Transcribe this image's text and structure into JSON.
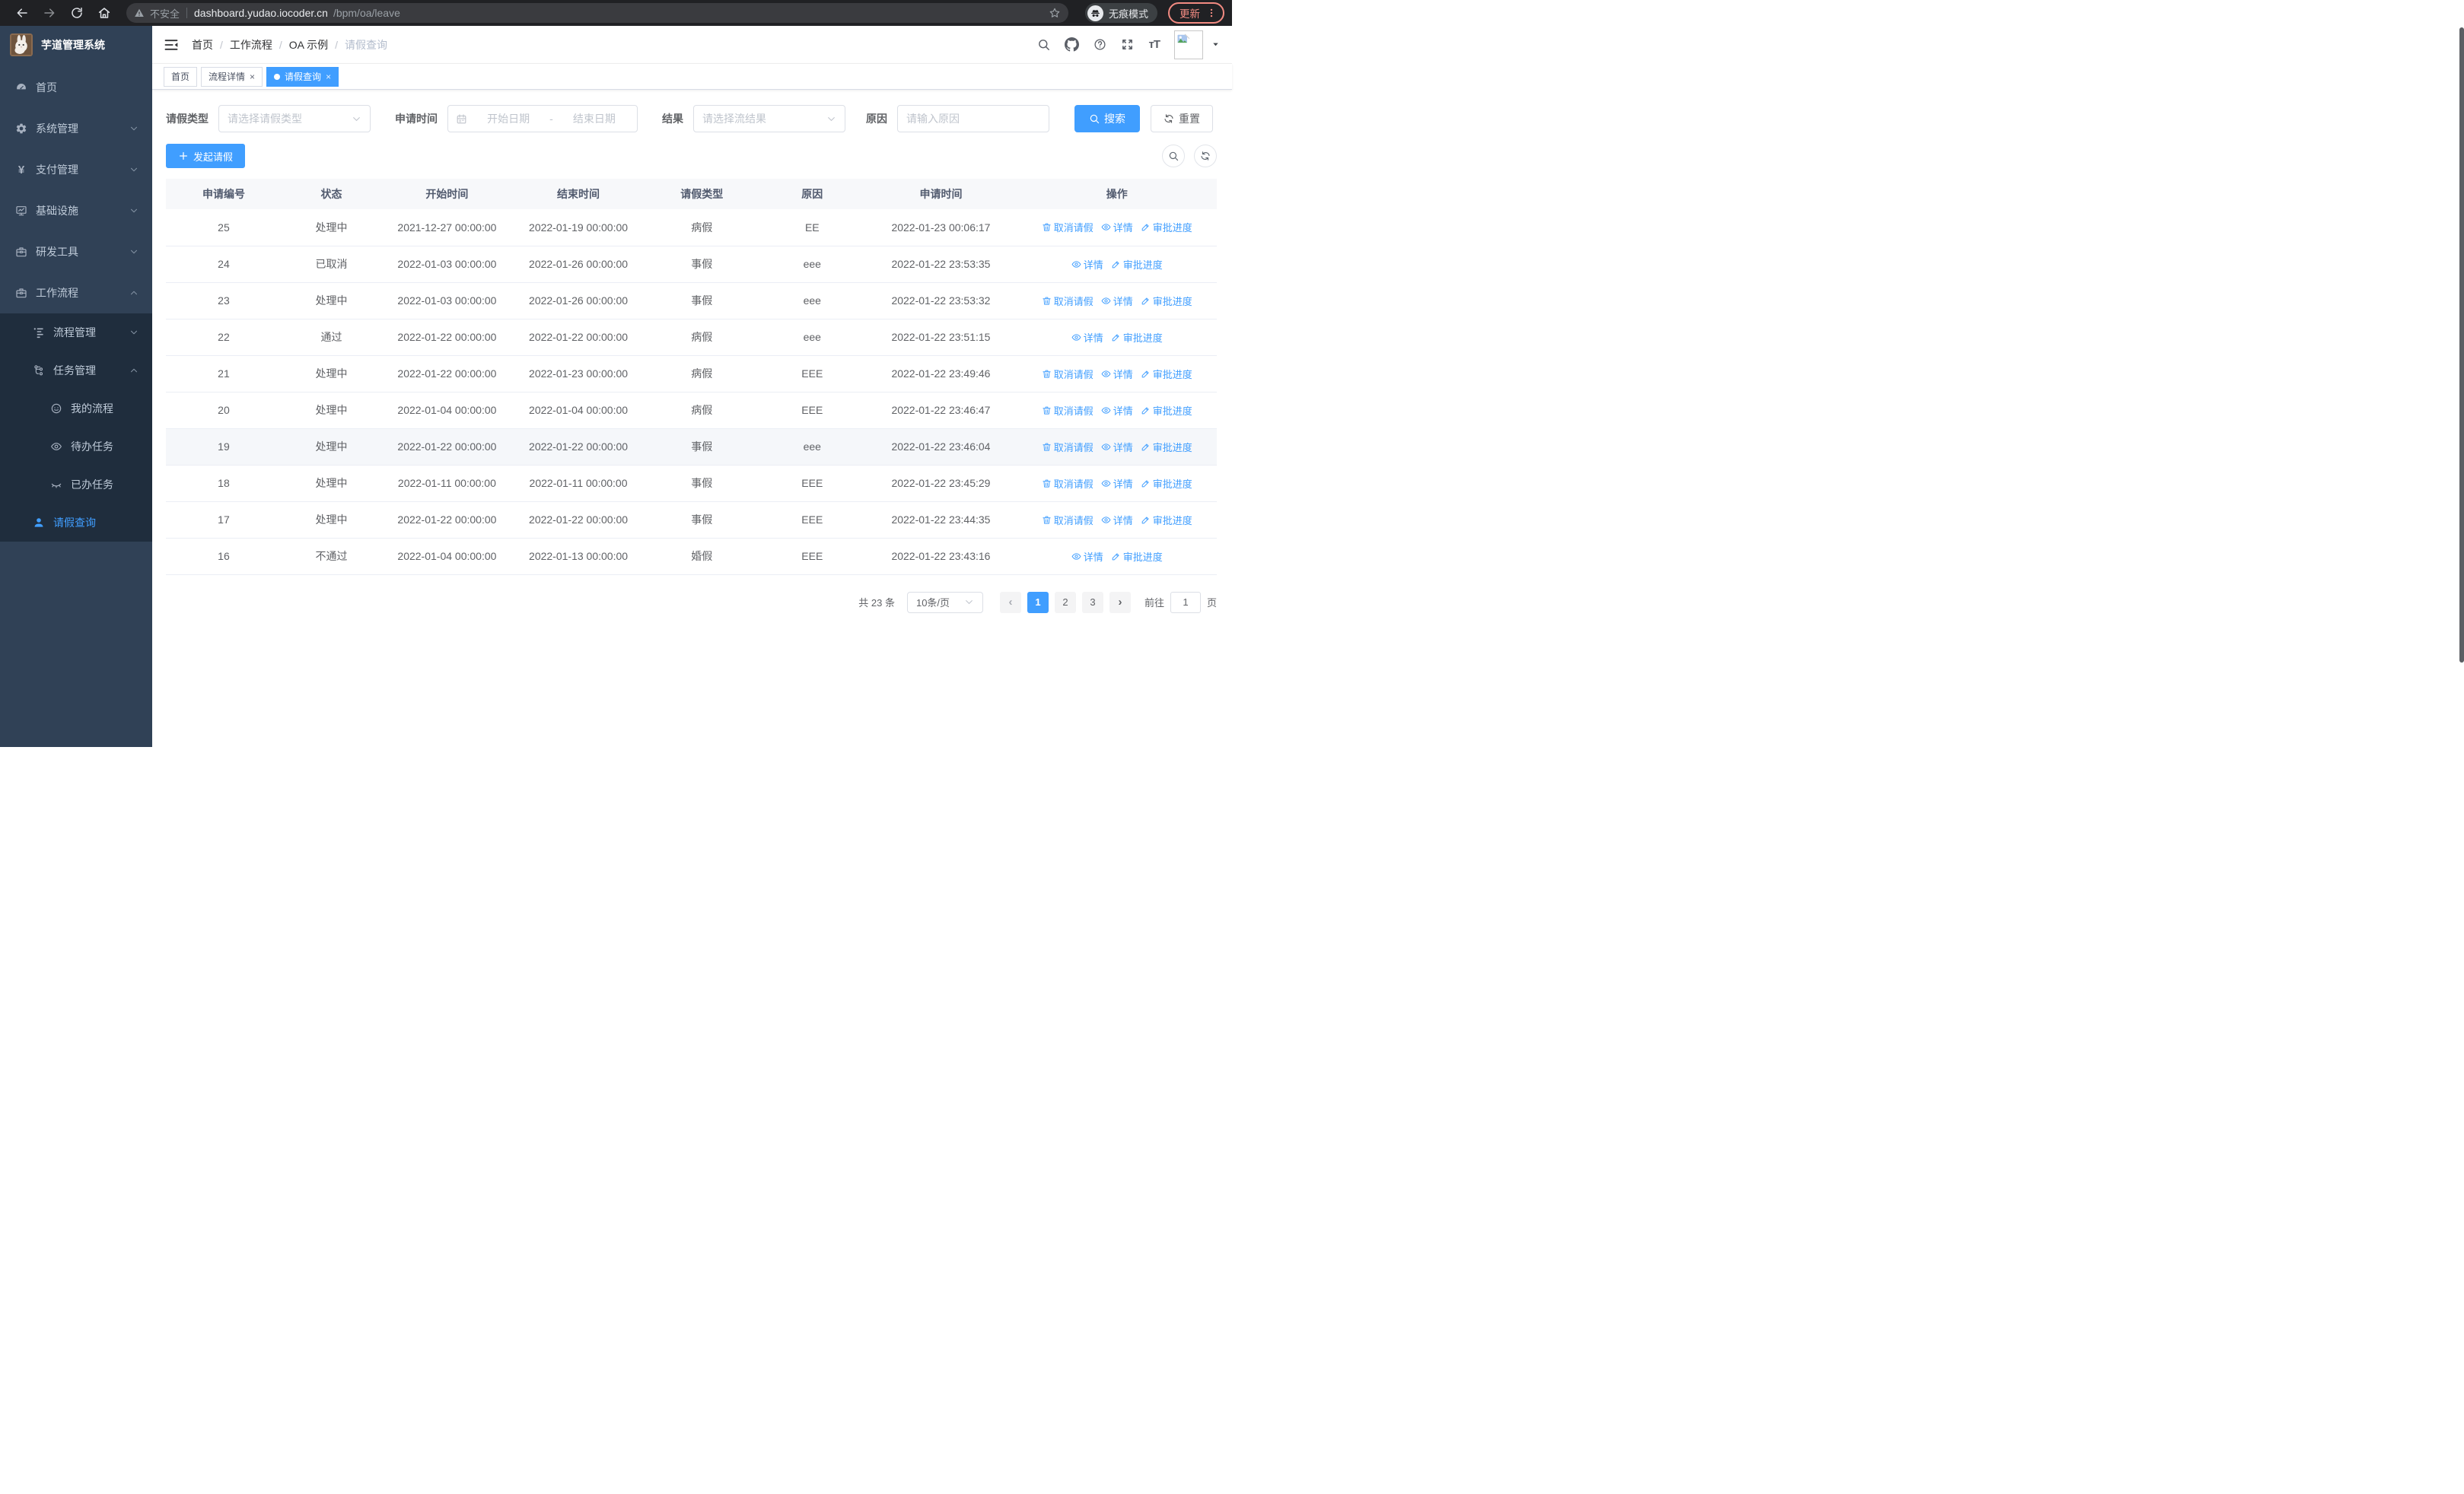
{
  "browser": {
    "security_label": "不安全",
    "url_host": "dashboard.yudao.iocoder.cn",
    "url_path": "/bpm/oa/leave",
    "incognito_label": "无痕模式",
    "update_label": "更新"
  },
  "colors": {
    "accent": "#409eff",
    "sidebar_bg": "#304156",
    "submenu_bg": "#1f2d3d",
    "update_red": "#f28b82"
  },
  "sidebar": {
    "title": "芋道管理系统",
    "menu": [
      {
        "key": "home",
        "label": "首页",
        "icon": "dashboard-icon",
        "level": 1,
        "sub": false,
        "expand": null,
        "active": false
      },
      {
        "key": "system",
        "label": "系统管理",
        "icon": "gear-icon",
        "level": 1,
        "sub": false,
        "expand": "down",
        "active": false
      },
      {
        "key": "payment",
        "label": "支付管理",
        "icon": "yen-icon",
        "level": 1,
        "sub": false,
        "expand": "down",
        "active": false
      },
      {
        "key": "infra",
        "label": "基础设施",
        "icon": "monitor-icon",
        "level": 1,
        "sub": false,
        "expand": "down",
        "active": false
      },
      {
        "key": "dev-tools",
        "label": "研发工具",
        "icon": "briefcase-icon",
        "level": 1,
        "sub": false,
        "expand": "down",
        "active": false
      },
      {
        "key": "workflow",
        "label": "工作流程",
        "icon": "briefcase-icon",
        "level": 1,
        "sub": false,
        "expand": "up",
        "active": false
      },
      {
        "key": "process-mgmt",
        "label": "流程管理",
        "icon": "list-icon",
        "level": 2,
        "sub": true,
        "expand": "down",
        "active": false
      },
      {
        "key": "task-mgmt",
        "label": "任务管理",
        "icon": "tree-icon",
        "level": 2,
        "sub": true,
        "expand": "up",
        "active": false
      },
      {
        "key": "my-process",
        "label": "我的流程",
        "icon": "face-icon",
        "level": 3,
        "sub": true,
        "expand": null,
        "active": false
      },
      {
        "key": "todo-tasks",
        "label": "待办任务",
        "icon": "eye-icon",
        "level": 3,
        "sub": true,
        "expand": null,
        "active": false
      },
      {
        "key": "done-tasks",
        "label": "已办任务",
        "icon": "eye-closed-icon",
        "level": 3,
        "sub": true,
        "expand": null,
        "active": false
      },
      {
        "key": "leave-query",
        "label": "请假查询",
        "icon": "user-icon",
        "level": 2,
        "sub": true,
        "expand": null,
        "active": true
      }
    ]
  },
  "header": {
    "breadcrumb": [
      "首页",
      "工作流程",
      "OA 示例",
      "请假查询"
    ]
  },
  "tags": [
    {
      "label": "首页",
      "active": false,
      "closable": false
    },
    {
      "label": "流程详情",
      "active": false,
      "closable": true
    },
    {
      "label": "请假查询",
      "active": true,
      "closable": true
    }
  ],
  "filters": {
    "leave_type_label": "请假类型",
    "leave_type_placeholder": "请选择请假类型",
    "apply_time_label": "申请时间",
    "date_start_placeholder": "开始日期",
    "date_separator": "-",
    "date_end_placeholder": "结束日期",
    "result_label": "结果",
    "result_placeholder": "请选择流结果",
    "reason_label": "原因",
    "reason_placeholder": "请输入原因",
    "search_label": "搜索",
    "reset_label": "重置"
  },
  "toolbar": {
    "create_label": "发起请假"
  },
  "table": {
    "columns": [
      "申请编号",
      "状态",
      "开始时间",
      "结束时间",
      "请假类型",
      "原因",
      "申请时间",
      "操作"
    ],
    "action_labels": {
      "cancel": "取消请假",
      "detail": "详情",
      "progress": "审批进度"
    },
    "rows": [
      {
        "id": "25",
        "status": "处理中",
        "start": "2021-12-27 00:00:00",
        "end": "2022-01-19 00:00:00",
        "type": "病假",
        "reason": "EE",
        "apply": "2022-01-23 00:06:17",
        "actions": [
          "cancel",
          "detail",
          "progress"
        ],
        "highlight": false
      },
      {
        "id": "24",
        "status": "已取消",
        "start": "2022-01-03 00:00:00",
        "end": "2022-01-26 00:00:00",
        "type": "事假",
        "reason": "eee",
        "apply": "2022-01-22 23:53:35",
        "actions": [
          "detail",
          "progress"
        ],
        "highlight": false
      },
      {
        "id": "23",
        "status": "处理中",
        "start": "2022-01-03 00:00:00",
        "end": "2022-01-26 00:00:00",
        "type": "事假",
        "reason": "eee",
        "apply": "2022-01-22 23:53:32",
        "actions": [
          "cancel",
          "detail",
          "progress"
        ],
        "highlight": false
      },
      {
        "id": "22",
        "status": "通过",
        "start": "2022-01-22 00:00:00",
        "end": "2022-01-22 00:00:00",
        "type": "病假",
        "reason": "eee",
        "apply": "2022-01-22 23:51:15",
        "actions": [
          "detail",
          "progress"
        ],
        "highlight": false
      },
      {
        "id": "21",
        "status": "处理中",
        "start": "2022-01-22 00:00:00",
        "end": "2022-01-23 00:00:00",
        "type": "病假",
        "reason": "EEE",
        "apply": "2022-01-22 23:49:46",
        "actions": [
          "cancel",
          "detail",
          "progress"
        ],
        "highlight": false
      },
      {
        "id": "20",
        "status": "处理中",
        "start": "2022-01-04 00:00:00",
        "end": "2022-01-04 00:00:00",
        "type": "病假",
        "reason": "EEE",
        "apply": "2022-01-22 23:46:47",
        "actions": [
          "cancel",
          "detail",
          "progress"
        ],
        "highlight": false
      },
      {
        "id": "19",
        "status": "处理中",
        "start": "2022-01-22 00:00:00",
        "end": "2022-01-22 00:00:00",
        "type": "事假",
        "reason": "eee",
        "apply": "2022-01-22 23:46:04",
        "actions": [
          "cancel",
          "detail",
          "progress"
        ],
        "highlight": true
      },
      {
        "id": "18",
        "status": "处理中",
        "start": "2022-01-11 00:00:00",
        "end": "2022-01-11 00:00:00",
        "type": "事假",
        "reason": "EEE",
        "apply": "2022-01-22 23:45:29",
        "actions": [
          "cancel",
          "detail",
          "progress"
        ],
        "highlight": false
      },
      {
        "id": "17",
        "status": "处理中",
        "start": "2022-01-22 00:00:00",
        "end": "2022-01-22 00:00:00",
        "type": "事假",
        "reason": "EEE",
        "apply": "2022-01-22 23:44:35",
        "actions": [
          "cancel",
          "detail",
          "progress"
        ],
        "highlight": false
      },
      {
        "id": "16",
        "status": "不通过",
        "start": "2022-01-04 00:00:00",
        "end": "2022-01-13 00:00:00",
        "type": "婚假",
        "reason": "EEE",
        "apply": "2022-01-22 23:43:16",
        "actions": [
          "detail",
          "progress"
        ],
        "highlight": false
      }
    ]
  },
  "pagination": {
    "total_label": "共 23 条",
    "page_size": "10条/页",
    "pages": [
      "1",
      "2",
      "3"
    ],
    "active_page": "1",
    "goto_label": "前往",
    "goto_value": "1",
    "page_unit": "页"
  }
}
